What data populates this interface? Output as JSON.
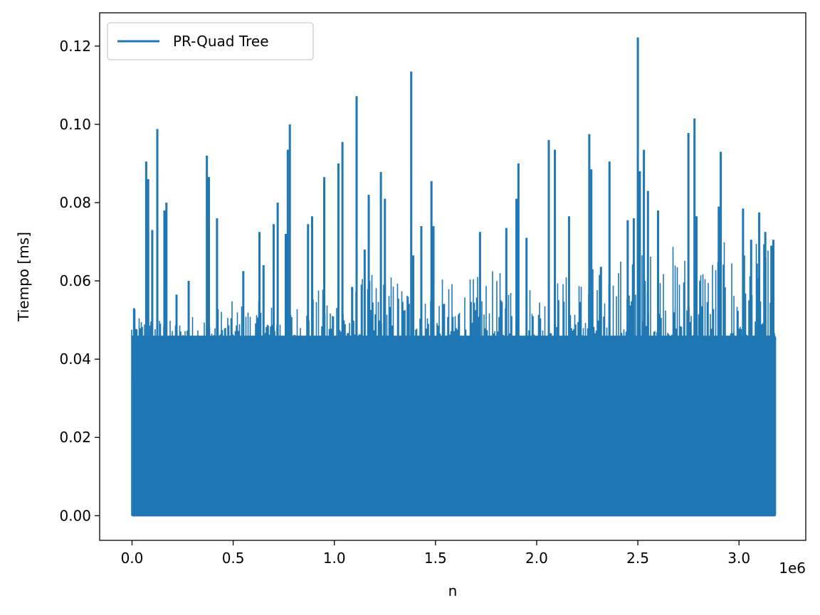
{
  "chart_data": {
    "type": "line",
    "title": "",
    "xlabel": "n",
    "ylabel": "Tiempo [ms]",
    "x_offset_text": "1e6",
    "xlim": [
      -0.16,
      3.33
    ],
    "ylim": [
      -0.0063,
      0.1285
    ],
    "x_ticks": [
      0.0,
      0.5,
      1.0,
      1.5,
      2.0,
      2.5,
      3.0
    ],
    "x_tick_labels": [
      "0.0",
      "0.5",
      "1.0",
      "1.5",
      "2.0",
      "2.5",
      "3.0"
    ],
    "y_ticks": [
      0.0,
      0.02,
      0.04,
      0.06,
      0.08,
      0.1,
      0.12
    ],
    "y_tick_labels": [
      "0.00",
      "0.02",
      "0.04",
      "0.06",
      "0.08",
      "0.10",
      "0.12"
    ],
    "grid": false,
    "legend": {
      "position": "top-left",
      "entries": [
        "PR-Quad Tree"
      ]
    },
    "x_range": [
      0.0,
      3.18
    ],
    "series": [
      {
        "name": "PR-Quad Tree",
        "color": "#1f77b4",
        "baseline_min": 0.0,
        "typical_upper_envelope": [
          [
            0.0,
            0.053
          ],
          [
            0.2,
            0.05
          ],
          [
            0.5,
            0.055
          ],
          [
            0.8,
            0.055
          ],
          [
            1.0,
            0.06
          ],
          [
            1.3,
            0.063
          ],
          [
            1.6,
            0.06
          ],
          [
            1.8,
            0.063
          ],
          [
            2.0,
            0.06
          ],
          [
            2.3,
            0.065
          ],
          [
            2.6,
            0.07
          ],
          [
            2.9,
            0.07
          ],
          [
            3.18,
            0.07
          ]
        ],
        "peaks": [
          [
            0.01,
            0.053
          ],
          [
            0.07,
            0.0905
          ],
          [
            0.08,
            0.086
          ],
          [
            0.1,
            0.073
          ],
          [
            0.125,
            0.0988
          ],
          [
            0.16,
            0.078
          ],
          [
            0.17,
            0.08
          ],
          [
            0.22,
            0.0565
          ],
          [
            0.28,
            0.06
          ],
          [
            0.37,
            0.092
          ],
          [
            0.38,
            0.0865
          ],
          [
            0.42,
            0.076
          ],
          [
            0.55,
            0.0625
          ],
          [
            0.63,
            0.0725
          ],
          [
            0.65,
            0.064
          ],
          [
            0.7,
            0.0745
          ],
          [
            0.72,
            0.08
          ],
          [
            0.76,
            0.072
          ],
          [
            0.77,
            0.0935
          ],
          [
            0.78,
            0.1
          ],
          [
            0.87,
            0.0745
          ],
          [
            0.89,
            0.0765
          ],
          [
            0.95,
            0.0865
          ],
          [
            1.02,
            0.09
          ],
          [
            1.04,
            0.0955
          ],
          [
            1.11,
            0.1072
          ],
          [
            1.15,
            0.068
          ],
          [
            1.17,
            0.082
          ],
          [
            1.23,
            0.0878
          ],
          [
            1.25,
            0.081
          ],
          [
            1.38,
            0.1135
          ],
          [
            1.39,
            0.0665
          ],
          [
            1.43,
            0.074
          ],
          [
            1.48,
            0.0855
          ],
          [
            1.49,
            0.074
          ],
          [
            1.72,
            0.0725
          ],
          [
            1.85,
            0.0735
          ],
          [
            1.9,
            0.081
          ],
          [
            1.91,
            0.09
          ],
          [
            1.95,
            0.071
          ],
          [
            2.06,
            0.096
          ],
          [
            2.09,
            0.0935
          ],
          [
            2.16,
            0.0765
          ],
          [
            2.26,
            0.0975
          ],
          [
            2.27,
            0.0885
          ],
          [
            2.36,
            0.0905
          ],
          [
            2.45,
            0.0755
          ],
          [
            2.48,
            0.076
          ],
          [
            2.5,
            0.1222
          ],
          [
            2.51,
            0.088
          ],
          [
            2.53,
            0.0935
          ],
          [
            2.55,
            0.083
          ],
          [
            2.6,
            0.078
          ],
          [
            2.75,
            0.0978
          ],
          [
            2.78,
            0.1015
          ],
          [
            2.79,
            0.0765
          ],
          [
            2.9,
            0.079
          ],
          [
            2.91,
            0.093
          ],
          [
            3.02,
            0.0785
          ],
          [
            3.06,
            0.0705
          ],
          [
            3.1,
            0.0775
          ],
          [
            3.13,
            0.0725
          ],
          [
            3.16,
            0.069
          ],
          [
            3.17,
            0.0705
          ]
        ]
      }
    ]
  }
}
